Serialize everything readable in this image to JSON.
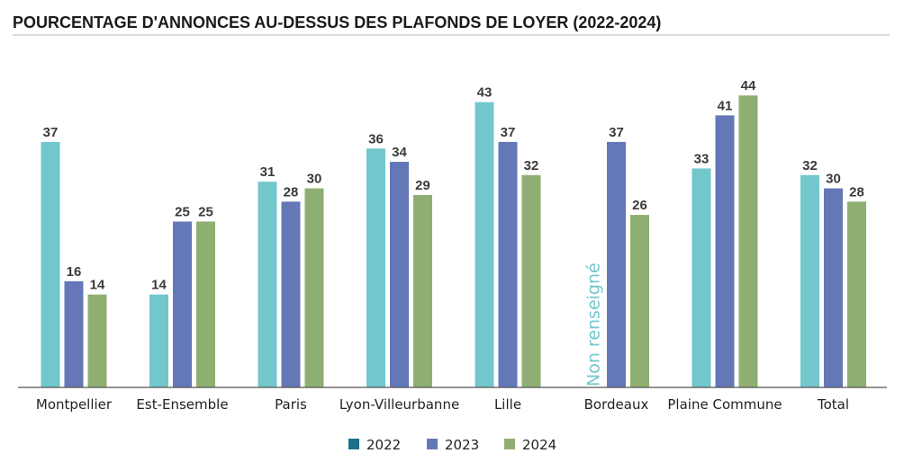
{
  "chart_data": {
    "type": "bar",
    "title": "POURCENTAGE D'ANNONCES AU-DESSUS DES PLAFONDS DE LOYER (2022-2024)",
    "categories": [
      "Montpellier",
      "Est-Ensemble",
      "Paris",
      "Lyon-Villeurbanne",
      "Lille",
      "Bordeaux",
      "Plaine Commune",
      "Total"
    ],
    "series": [
      {
        "name": "2022",
        "color": "#72C7CD",
        "legend_color": "#1F6F8B",
        "values": [
          37,
          14,
          31,
          36,
          43,
          null,
          33,
          32
        ]
      },
      {
        "name": "2023",
        "color": "#6478B8",
        "values": [
          16,
          25,
          28,
          34,
          37,
          37,
          41,
          30
        ]
      },
      {
        "name": "2024",
        "color": "#8FAF72",
        "values": [
          14,
          25,
          30,
          29,
          32,
          26,
          44,
          28
        ]
      }
    ],
    "missing_label": "Non renseigné",
    "missing_label_color": "#72C7CD",
    "ylim": [
      0,
      48
    ],
    "grid": false,
    "legend_position": "bottom-center"
  }
}
